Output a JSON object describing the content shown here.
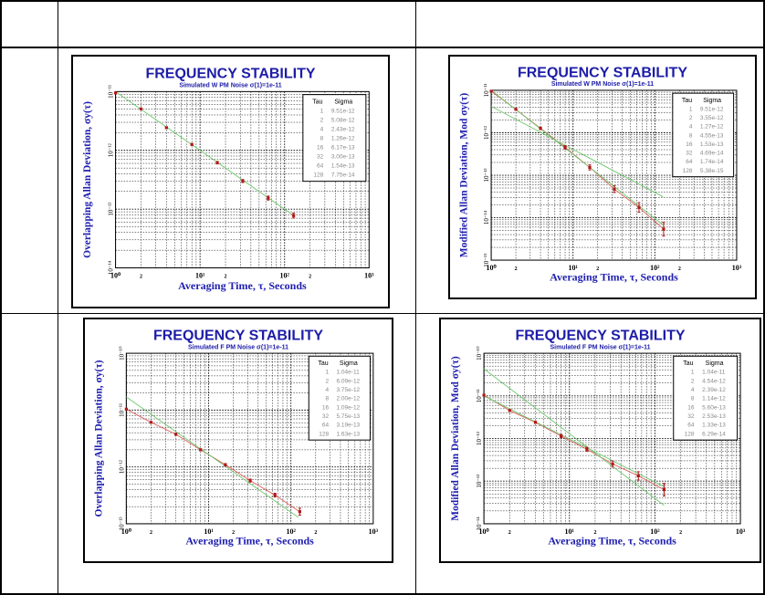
{
  "colors": {
    "title": "#1c1ca8",
    "axis_label": "#2020b0",
    "point": "#b01818",
    "fit_red": "#e06060",
    "fit_green": "#70c870",
    "legend_value": "#8a8a8a"
  },
  "chart_data": [
    {
      "type": "line",
      "title": "FREQUENCY STABILITY",
      "subtitle": "Simulated W PM Noise σ(1)=1e-11",
      "xlabel": "Averaging Time, τ, Seconds",
      "ylabel": "Overlapping Allan Deviation, σy(τ)",
      "xlim": [
        1,
        1000
      ],
      "ylim": [
        1e-14,
        1e-11
      ],
      "x_tick_labels": [
        "10⁰",
        "2",
        "10¹",
        "2",
        "10²",
        "2",
        "10³"
      ],
      "y_tick_labels": [
        "10⁻¹¹",
        "10⁻¹²",
        "10⁻¹³",
        "10⁻¹⁴"
      ],
      "grid": true,
      "legend": {
        "placement": "top-right",
        "headers": [
          "Tau",
          "Sigma"
        ],
        "rows": [
          [
            "1",
            "9.51e-12"
          ],
          [
            "2",
            "5.08e-12"
          ],
          [
            "4",
            "2.43e-12"
          ],
          [
            "8",
            "1.26e-12"
          ],
          [
            "16",
            "6.17e-13"
          ],
          [
            "32",
            "3.00e-13"
          ],
          [
            "64",
            "1.54e-13"
          ],
          [
            "128",
            "7.75e-14"
          ]
        ]
      },
      "tau": [
        1,
        2,
        4,
        8,
        16,
        32,
        64,
        128
      ],
      "sigma": [
        9.51e-12,
        5.08e-12,
        2.43e-12,
        1.26e-12,
        6.17e-13,
        3e-13,
        1.54e-13,
        7.75e-14
      ],
      "error_frac": [
        0,
        0.02,
        0.03,
        0.04,
        0.05,
        0.06,
        0.08,
        0.1
      ],
      "fits": [
        {
          "color": "green",
          "points": [
            [
              1,
              1e-11
            ],
            [
              128,
              7.8e-14
            ]
          ]
        }
      ]
    },
    {
      "type": "line",
      "title": "FREQUENCY STABILITY",
      "subtitle": "Simulated W PM Noise σ(1)=1e-11",
      "xlabel": "Averaging Time, τ, Seconds",
      "ylabel": "Modified Allan Deviation, Mod σy(τ)",
      "xlim": [
        1,
        1000
      ],
      "ylim": [
        1e-15,
        1e-11
      ],
      "x_tick_labels": [
        "10⁰",
        "2",
        "10¹",
        "2",
        "10²",
        "2",
        "10³"
      ],
      "y_tick_labels": [
        "10⁻¹¹",
        "10⁻¹²",
        "10⁻¹³",
        "10⁻¹⁴",
        "10⁻¹⁵"
      ],
      "grid": true,
      "legend": {
        "placement": "top-right",
        "headers": [
          "Tau",
          "Sigma"
        ],
        "rows": [
          [
            "1",
            "9.51e-12"
          ],
          [
            "2",
            "3.55e-12"
          ],
          [
            "4",
            "1.27e-12"
          ],
          [
            "8",
            "4.55e-13"
          ],
          [
            "16",
            "1.53e-13"
          ],
          [
            "32",
            "4.69e-14"
          ],
          [
            "64",
            "1.74e-14"
          ],
          [
            "128",
            "5.38e-15"
          ]
        ]
      },
      "tau": [
        1,
        2,
        4,
        8,
        16,
        32,
        64,
        128
      ],
      "sigma": [
        9.51e-12,
        3.55e-12,
        1.27e-12,
        4.55e-13,
        1.53e-13,
        4.69e-14,
        1.74e-14,
        5.38e-15
      ],
      "error_frac": [
        0,
        0.05,
        0.07,
        0.1,
        0.15,
        0.2,
        0.3,
        0.45
      ],
      "fits": [
        {
          "color": "red",
          "points": [
            [
              1,
              9.51e-12
            ],
            [
              2,
              3.55e-12
            ],
            [
              4,
              1.27e-12
            ],
            [
              8,
              4.55e-13
            ],
            [
              16,
              1.53e-13
            ],
            [
              32,
              4.69e-14
            ],
            [
              64,
              1.74e-14
            ],
            [
              128,
              5.38e-15
            ]
          ]
        },
        {
          "color": "green",
          "points": [
            [
              1,
              1e-11
            ],
            [
              126,
              6.8e-15
            ]
          ]
        },
        {
          "color": "green",
          "points": [
            [
              1,
              4.2e-12
            ],
            [
              126,
              3.1e-14
            ]
          ]
        }
      ]
    },
    {
      "type": "line",
      "title": "FREQUENCY STABILITY",
      "subtitle": "Simulated F PM Noise σ(1)=1e-11",
      "xlabel": "Averaging Time, τ, Seconds",
      "ylabel": "Overlapping Allan Deviation, σy(τ)",
      "xlim": [
        1,
        1000
      ],
      "ylim": [
        1e-13,
        1e-10
      ],
      "x_tick_labels": [
        "10⁰",
        "2",
        "10¹",
        "2",
        "10²",
        "2",
        "10³"
      ],
      "y_tick_labels": [
        "10⁻¹⁰",
        "10⁻¹¹",
        "10⁻¹²",
        "10⁻¹³"
      ],
      "grid": true,
      "legend": {
        "placement": "top-right",
        "headers": [
          "Tau",
          "Sigma"
        ],
        "rows": [
          [
            "1",
            "1.04e-11"
          ],
          [
            "2",
            "6.09e-12"
          ],
          [
            "4",
            "3.75e-12"
          ],
          [
            "8",
            "2.00e-12"
          ],
          [
            "16",
            "1.09e-12"
          ],
          [
            "32",
            "5.75e-13"
          ],
          [
            "64",
            "3.19e-13"
          ],
          [
            "128",
            "1.63e-13"
          ]
        ]
      },
      "tau": [
        1,
        2,
        4,
        8,
        16,
        32,
        64,
        128
      ],
      "sigma": [
        1.04e-11,
        6.09e-12,
        3.75e-12,
        2e-12,
        1.09e-12,
        5.75e-13,
        3.19e-13,
        1.63e-13
      ],
      "error_frac": [
        0,
        0.02,
        0.03,
        0.04,
        0.05,
        0.06,
        0.08,
        0.15
      ],
      "fits": [
        {
          "color": "red",
          "points": [
            [
              1,
              1.04e-11
            ],
            [
              2,
              6.09e-12
            ],
            [
              4,
              3.75e-12
            ],
            [
              8,
              2e-12
            ],
            [
              16,
              1.09e-12
            ],
            [
              32,
              5.75e-13
            ],
            [
              64,
              3.19e-13
            ],
            [
              128,
              1.63e-13
            ]
          ]
        },
        {
          "color": "green",
          "points": [
            [
              1,
              1.7e-11
            ],
            [
              123,
              1.3e-13
            ]
          ]
        }
      ]
    },
    {
      "type": "line",
      "title": "FREQUENCY STABILITY",
      "subtitle": "Simulated F PM Noise σ(1)=1e-11",
      "xlabel": "Averaging Time, τ, Seconds",
      "ylabel": "Modified Allan Deviation, Mod σy(τ)",
      "xlim": [
        1,
        1000
      ],
      "ylim": [
        1e-14,
        1e-10
      ],
      "x_tick_labels": [
        "10⁰",
        "2",
        "10¹",
        "2",
        "10²",
        "2",
        "10³"
      ],
      "y_tick_labels": [
        "10⁻¹⁰",
        "10⁻¹¹",
        "10⁻¹²",
        "10⁻¹³",
        "10⁻¹⁴"
      ],
      "grid": true,
      "legend": {
        "placement": "top-right",
        "headers": [
          "Tau",
          "Sigma"
        ],
        "rows": [
          [
            "1",
            "1.04e-11"
          ],
          [
            "2",
            "4.54e-12"
          ],
          [
            "4",
            "2.39e-12"
          ],
          [
            "8",
            "1.14e-12"
          ],
          [
            "16",
            "5.60e-13"
          ],
          [
            "32",
            "2.53e-13"
          ],
          [
            "64",
            "1.33e-13"
          ],
          [
            "128",
            "6.29e-14"
          ]
        ]
      },
      "tau": [
        1,
        2,
        4,
        8,
        16,
        32,
        64,
        128
      ],
      "sigma": [
        1.04e-11,
        4.54e-12,
        2.39e-12,
        1.14e-12,
        5.6e-13,
        2.53e-13,
        1.33e-13,
        6.29e-14
      ],
      "error_frac": [
        0,
        0.05,
        0.06,
        0.09,
        0.12,
        0.18,
        0.25,
        0.4
      ],
      "fits": [
        {
          "color": "red",
          "points": [
            [
              1,
              1.04e-11
            ],
            [
              2,
              4.54e-12
            ],
            [
              4,
              2.39e-12
            ],
            [
              8,
              1.14e-12
            ],
            [
              16,
              5.6e-13
            ],
            [
              32,
              2.53e-13
            ],
            [
              64,
              1.33e-13
            ],
            [
              128,
              6.29e-14
            ]
          ]
        },
        {
          "color": "green",
          "points": [
            [
              1,
              4.3e-11
            ],
            [
              128,
              2.7e-14
            ]
          ]
        },
        {
          "color": "green",
          "points": [
            [
              1,
              1e-11
            ],
            [
              128,
              7.4e-14
            ]
          ]
        }
      ]
    }
  ]
}
